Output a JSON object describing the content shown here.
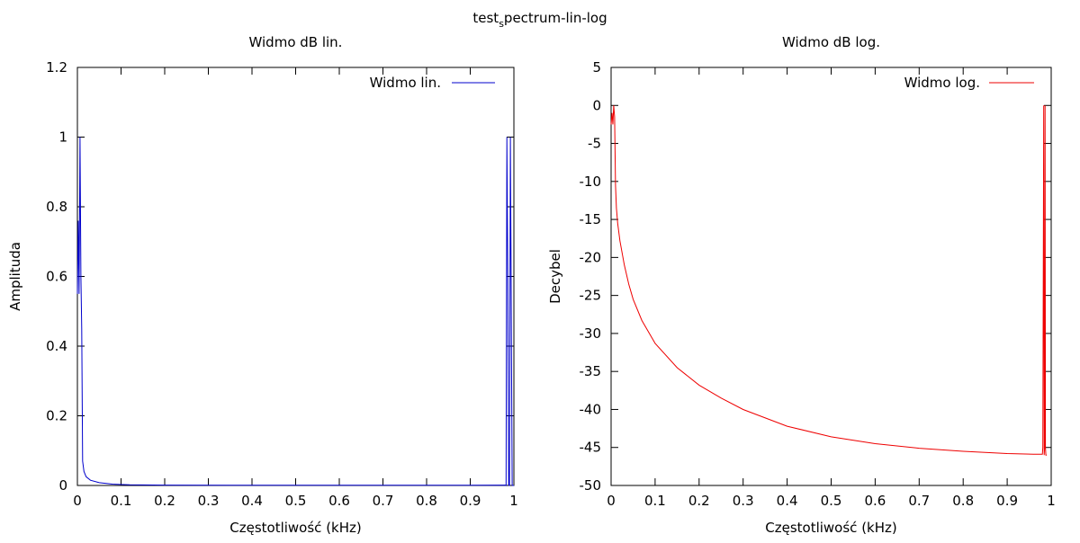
{
  "page": {
    "title_main": "test",
    "title_sub": "s",
    "title_rest": "pectrum-lin-log"
  },
  "chart_data": [
    {
      "type": "line",
      "title": "Widmo dB lin.",
      "xlabel": "Częstotliwość (kHz)",
      "ylabel": "Amplituda",
      "xlim": [
        0,
        1
      ],
      "ylim": [
        0,
        1.2
      ],
      "xticks": [
        "0",
        "0.1",
        "0.2",
        "0.3",
        "0.4",
        "0.5",
        "0.6",
        "0.7",
        "0.8",
        "0.9",
        "1"
      ],
      "yticks": [
        "0",
        "0.2",
        "0.4",
        "0.6",
        "0.8",
        "1",
        "1.2"
      ],
      "xtick_values": [
        0,
        0.1,
        0.2,
        0.3,
        0.4,
        0.5,
        0.6,
        0.7,
        0.8,
        0.9,
        1
      ],
      "ytick_values": [
        0,
        0.2,
        0.4,
        0.6,
        0.8,
        1,
        1.2
      ],
      "grid": false,
      "legend_position": "top-right",
      "series": [
        {
          "name": "Widmo lin.",
          "color": "#0000cc",
          "x": [
            0,
            0.002,
            0.004,
            0.006,
            0.008,
            0.01,
            0.012,
            0.015,
            0.02,
            0.03,
            0.05,
            0.08,
            0.12,
            0.2,
            0.5,
            0.9,
            0.98,
            0.982,
            0.984,
            0.986,
            0.988,
            0.99,
            0.992,
            0.994,
            0.996,
            0.998,
            1.0
          ],
          "y": [
            0.55,
            0.76,
            0.55,
            1.0,
            0.6,
            0.45,
            0.07,
            0.04,
            0.025,
            0.015,
            0.008,
            0.004,
            0.002,
            0.001,
            0.0005,
            0.0005,
            0.001,
            0.0,
            1.0,
            0.6,
            0.0,
            0.0,
            1.0,
            0.5,
            0.0,
            0.0,
            0.0
          ]
        }
      ]
    },
    {
      "type": "line",
      "title": "Widmo dB log.",
      "xlabel": "Częstotliwość (kHz)",
      "ylabel": "Decybel",
      "xlim": [
        0,
        1
      ],
      "ylim": [
        -50,
        5
      ],
      "xticks": [
        "0",
        "0.1",
        "0.2",
        "0.3",
        "0.4",
        "0.5",
        "0.6",
        "0.7",
        "0.8",
        "0.9",
        "1"
      ],
      "yticks": [
        "5",
        "0",
        "-5",
        "-10",
        "-15",
        "-20",
        "-25",
        "-30",
        "-35",
        "-40",
        "-45",
        "-50"
      ],
      "xtick_values": [
        0,
        0.1,
        0.2,
        0.3,
        0.4,
        0.5,
        0.6,
        0.7,
        0.8,
        0.9,
        1
      ],
      "ytick_values": [
        5,
        0,
        -5,
        -10,
        -15,
        -20,
        -25,
        -30,
        -35,
        -40,
        -45,
        -50
      ],
      "grid": false,
      "legend_position": "top-right",
      "series": [
        {
          "name": "Widmo log.",
          "color": "#ee0000",
          "x": [
            0,
            0.002,
            0.004,
            0.006,
            0.008,
            0.01,
            0.012,
            0.015,
            0.02,
            0.03,
            0.04,
            0.05,
            0.07,
            0.1,
            0.15,
            0.2,
            0.25,
            0.3,
            0.4,
            0.5,
            0.6,
            0.7,
            0.8,
            0.9,
            0.96,
            0.98,
            0.981,
            0.983,
            0.984,
            0.985,
            0.986,
            0.987,
            0.988,
            0.99
          ],
          "y": [
            -2.5,
            -1.0,
            -2.5,
            0.0,
            -1.5,
            -10.5,
            -13.5,
            -15.5,
            -17.8,
            -21.0,
            -23.5,
            -25.5,
            -28.3,
            -31.3,
            -34.5,
            -36.8,
            -38.5,
            -40.0,
            -42.2,
            -43.6,
            -44.5,
            -45.1,
            -45.5,
            -45.8,
            -45.9,
            -45.9,
            -45.0,
            0.0,
            -46.0,
            -45.0,
            0.0,
            -45.0,
            -46.0,
            -46.0
          ]
        }
      ]
    }
  ]
}
